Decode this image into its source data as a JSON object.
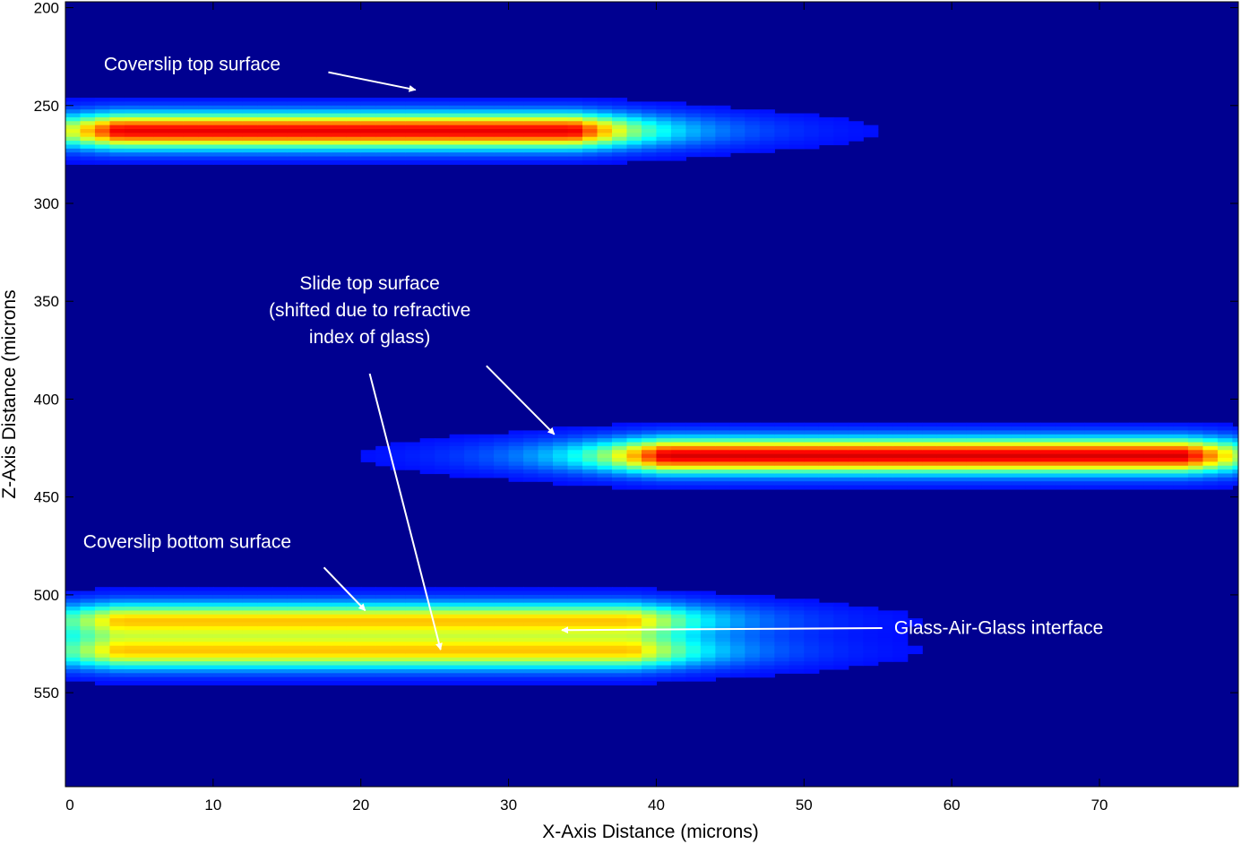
{
  "chart_data": {
    "type": "heatmap",
    "title": "",
    "xlabel": "X-Axis Distance (microns)",
    "ylabel": "Z-Axis Distance (microns",
    "xlim": [
      0,
      79.4
    ],
    "ylim": [
      598,
      197
    ],
    "y_inverted": true,
    "colormap": "jet",
    "x_ticks": [
      0,
      10,
      20,
      30,
      40,
      50,
      60,
      70
    ],
    "y_ticks": [
      200,
      250,
      300,
      350,
      400,
      450,
      500,
      550
    ],
    "background_color": "#000090",
    "bands": [
      {
        "z": 263,
        "x_start": 0,
        "x_end": 38,
        "peak": 0.88,
        "width": 6
      },
      {
        "z": 429,
        "x_start": 37,
        "x_end": 79.4,
        "peak": 0.9,
        "width": 6
      },
      {
        "z": 513,
        "x_start": 0,
        "x_end": 42,
        "peak": 0.62,
        "width": 6
      },
      {
        "z": 529,
        "x_start": 0,
        "x_end": 42,
        "peak": 0.62,
        "width": 6
      }
    ],
    "annotations": [
      {
        "lines": [
          "Coverslip top surface"
        ],
        "text_x": 2.6,
        "text_z": 232,
        "align": "start",
        "arrow_from": [
          17.8,
          233
        ],
        "arrow_to": [
          23.7,
          242
        ]
      },
      {
        "lines": [
          "Slide top surface",
          "(shifted due to refractive",
          "index of glass)"
        ],
        "text_x": 20.6,
        "text_z": 344,
        "align": "middle",
        "arrow_from": [
          28.5,
          383
        ],
        "arrow_to": [
          33.1,
          418
        ]
      },
      {
        "lines": [],
        "arrow_from": [
          20.6,
          387
        ],
        "arrow_to": [
          25.4,
          528
        ]
      },
      {
        "lines": [
          "Coverslip bottom surface"
        ],
        "text_x": 1.2,
        "text_z": 476,
        "align": "start",
        "arrow_from": [
          17.5,
          486
        ],
        "arrow_to": [
          20.3,
          508
        ]
      },
      {
        "lines": [
          "Glass-Air-Glass interface"
        ],
        "text_x": 56.1,
        "text_z": 520,
        "align": "start",
        "arrow_from": [
          55.3,
          517
        ],
        "arrow_to": [
          33.6,
          518
        ]
      }
    ]
  }
}
